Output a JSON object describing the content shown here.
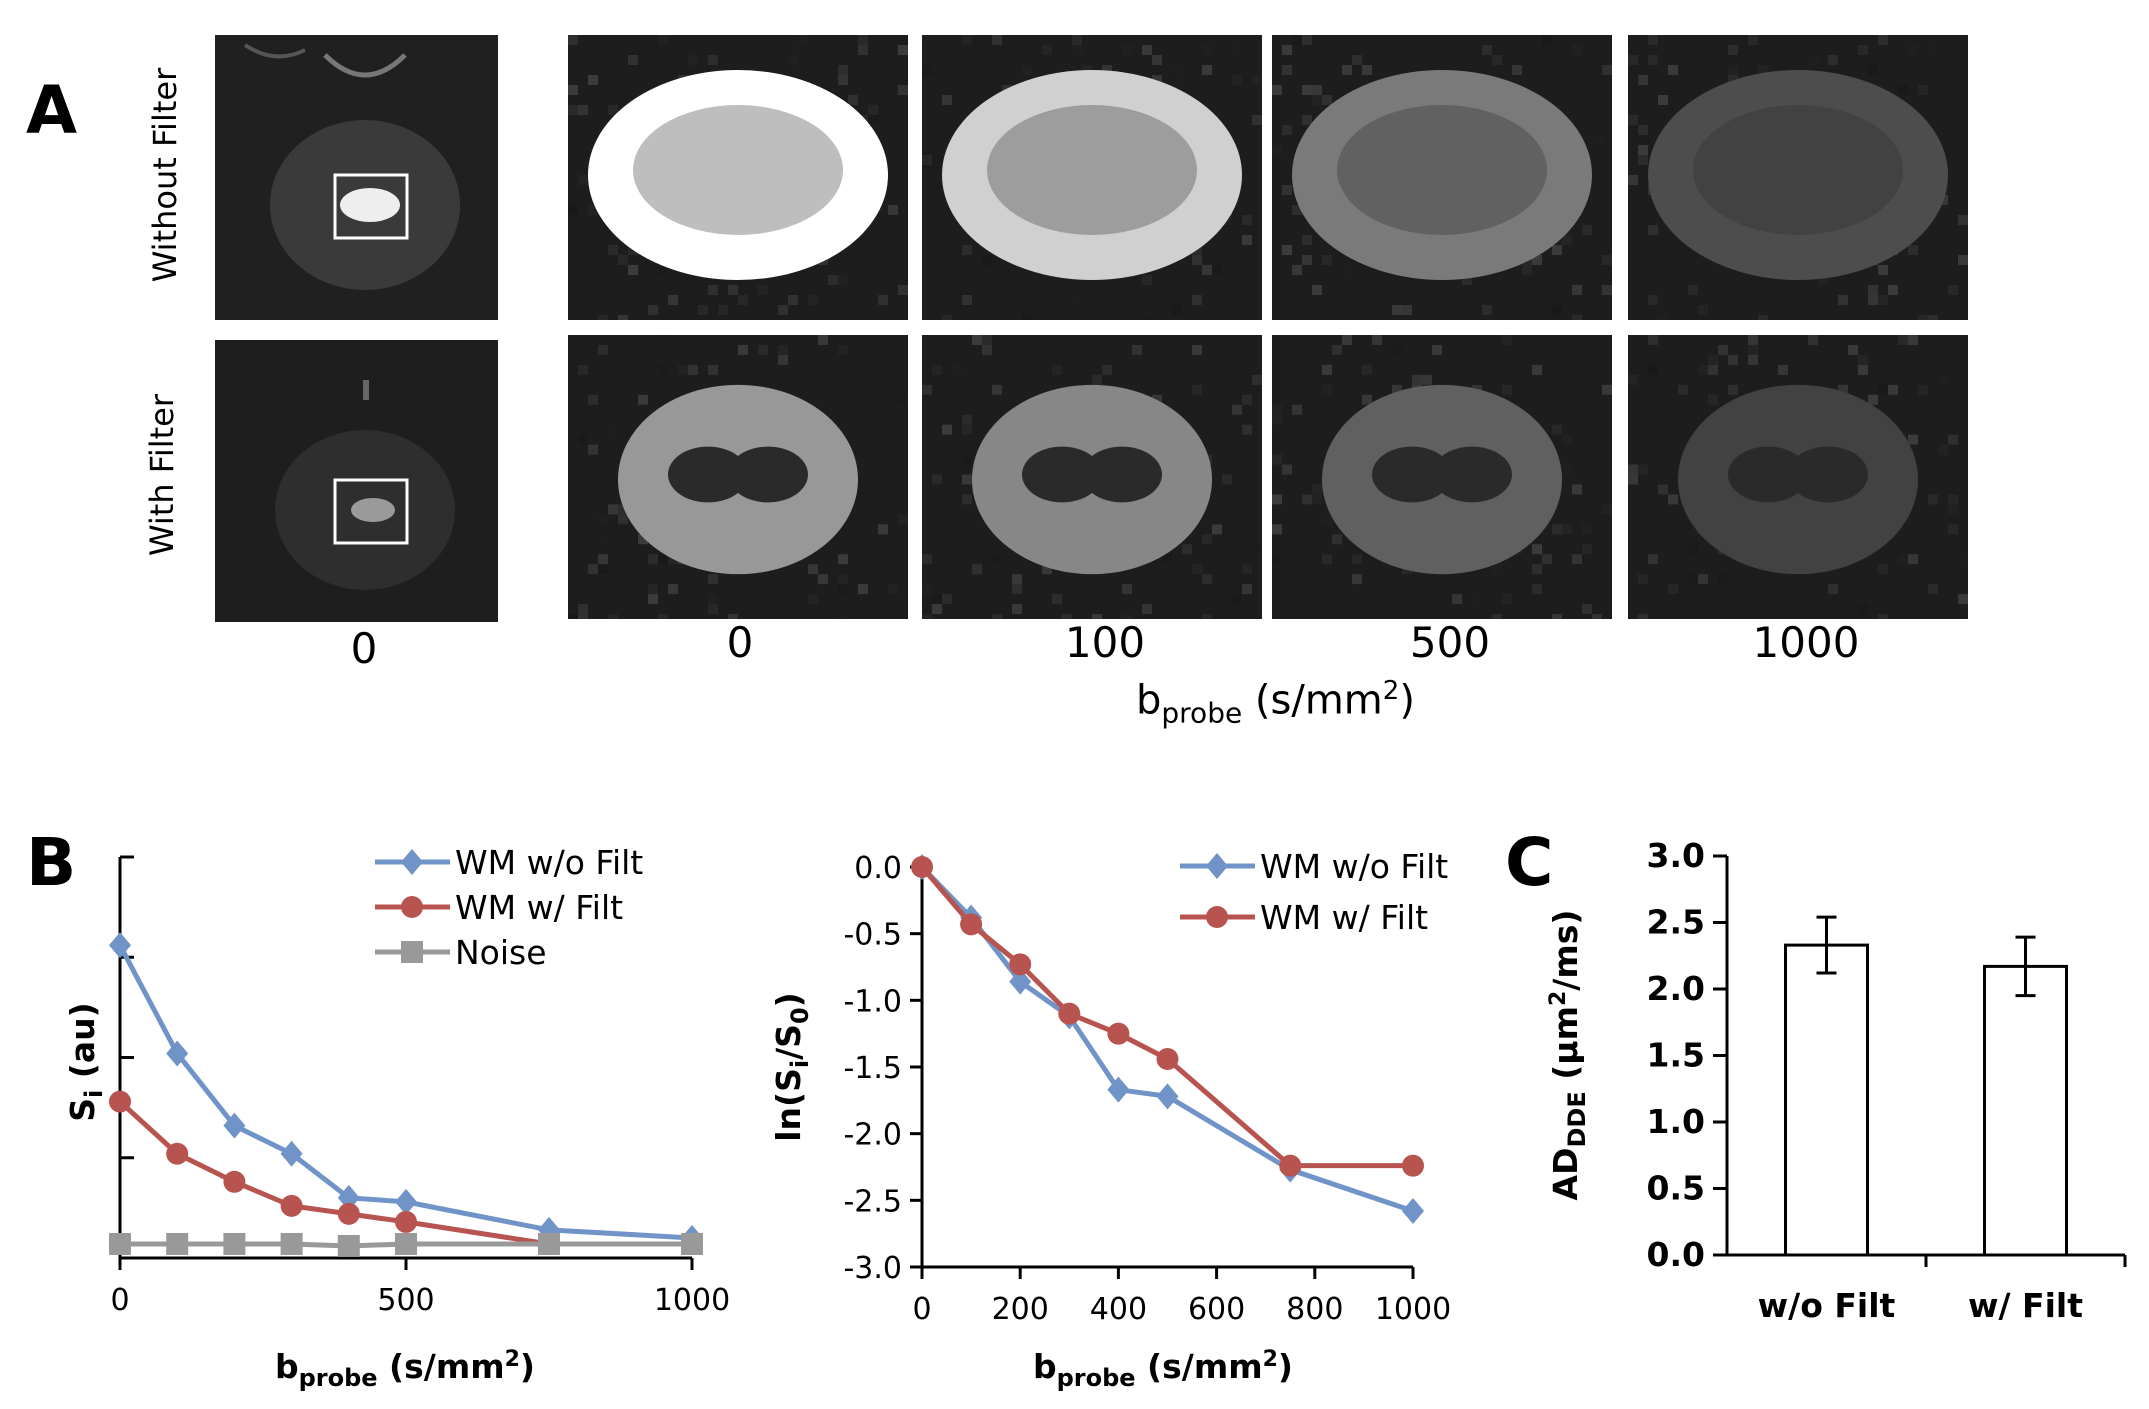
{
  "panel_a": {
    "letter": "A",
    "row_labels": [
      "Without Filter",
      "With Filter"
    ],
    "overview_b_label": "0",
    "b_labels": [
      "0",
      "100",
      "500",
      "1000"
    ],
    "xlabel_main": "b",
    "xlabel_sub": "probe",
    "xlabel_units": " (s/mm",
    "xlabel_sup": "2",
    "xlabel_close": ")",
    "brightness": {
      "without_filter": [
        1.0,
        0.78,
        0.38,
        0.17
      ],
      "with_filter": [
        0.52,
        0.44,
        0.26,
        0.12
      ]
    }
  },
  "chart_data": [
    {
      "panel": "B",
      "letter": "B",
      "type": "line",
      "title": "",
      "x": [
        0,
        100,
        200,
        300,
        400,
        500,
        750,
        1000
      ],
      "xlim": [
        0,
        1000
      ],
      "xticks": [
        "0",
        "500",
        "1000"
      ],
      "ylim": [
        0,
        1
      ],
      "ylabel_main": "S",
      "ylabel_sub": "i",
      "ylabel_rest": " (au)",
      "xlabel_main": "b",
      "xlabel_sub": "probe",
      "xlabel_rest": " (s/mm",
      "xlabel_sup": "2",
      "xlabel_close": ")",
      "series": [
        {
          "name": "WM w/o Filt",
          "color": "#7094c8",
          "marker": "diamond",
          "values": [
            0.78,
            0.51,
            0.33,
            0.26,
            0.15,
            0.14,
            0.07,
            0.05
          ]
        },
        {
          "name": "WM w/ Filt",
          "color": "#b85450",
          "marker": "circle",
          "values": [
            0.39,
            0.26,
            0.19,
            0.13,
            0.11,
            0.09,
            0.035,
            0.035
          ]
        },
        {
          "name": "Noise",
          "color": "#999999",
          "marker": "square",
          "values": [
            0.035,
            0.035,
            0.035,
            0.035,
            0.03,
            0.035,
            0.035,
            0.035
          ]
        }
      ]
    },
    {
      "panel": "B2",
      "type": "line",
      "title": "",
      "x": [
        0,
        100,
        200,
        300,
        400,
        500,
        750,
        1000
      ],
      "xlim": [
        0,
        1000
      ],
      "xticks": [
        "0",
        "200",
        "400",
        "600",
        "800",
        "1000"
      ],
      "ylim": [
        -3.0,
        0.0
      ],
      "yticks": [
        "0.0",
        "-0.5",
        "-1.0",
        "-1.5",
        "-2.0",
        "-2.5",
        "-3.0"
      ],
      "ylabel_main": "ln(S",
      "ylabel_sub1": "i",
      "ylabel_mid": "/S",
      "ylabel_sub2": "0",
      "ylabel_close": ")",
      "xlabel_main": "b",
      "xlabel_sub": "probe",
      "xlabel_rest": " (s/mm",
      "xlabel_sup": "2",
      "xlabel_close": ")",
      "series": [
        {
          "name": "WM w/o Filt",
          "color": "#7094c8",
          "marker": "diamond",
          "values": [
            0.0,
            -0.38,
            -0.86,
            -1.12,
            -1.67,
            -1.72,
            -2.27,
            -2.58
          ]
        },
        {
          "name": "WM w/ Filt",
          "color": "#b85450",
          "marker": "circle",
          "values": [
            0.0,
            -0.43,
            -0.73,
            -1.1,
            -1.25,
            -1.44,
            -2.24,
            -2.24
          ]
        }
      ]
    },
    {
      "panel": "C",
      "letter": "C",
      "type": "bar",
      "title": "",
      "categories": [
        "w/o Filt",
        "w/ Filt"
      ],
      "values": [
        2.33,
        2.17
      ],
      "errors": [
        0.21,
        0.22
      ],
      "ylim": [
        0.0,
        3.0
      ],
      "yticks": [
        "0.0",
        "0.5",
        "1.0",
        "1.5",
        "2.0",
        "2.5",
        "3.0"
      ],
      "ylabel_main": "AD",
      "ylabel_sub": "DDE",
      "ylabel_rest": " (μm",
      "ylabel_sup": "2",
      "ylabel_close": "/ms)"
    }
  ]
}
